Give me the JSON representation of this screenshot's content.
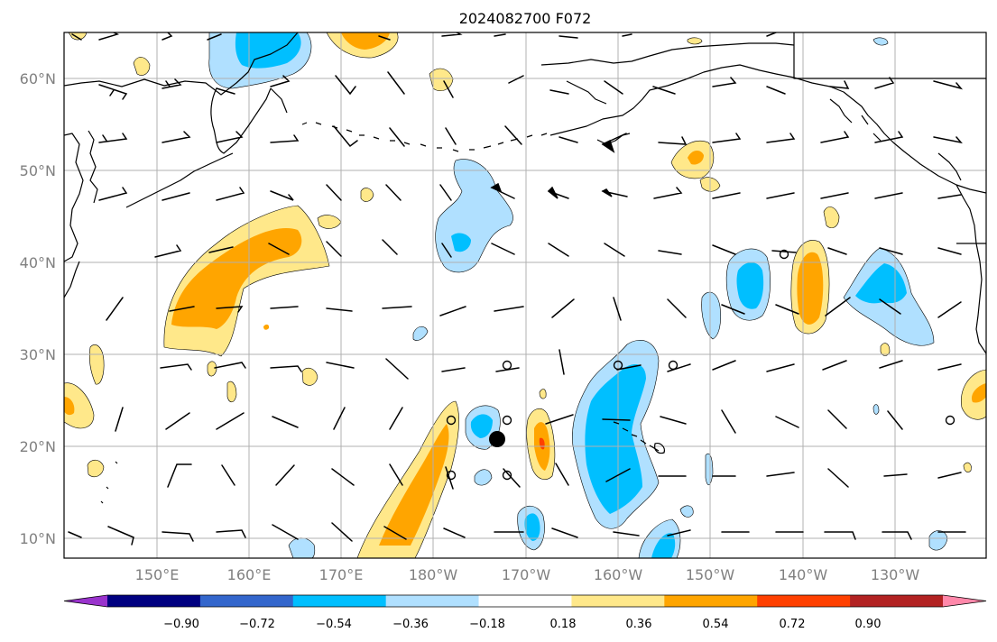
{
  "title": "2024082700 F072",
  "map": {
    "lat_labels": [
      "60°N",
      "50°N",
      "40°N",
      "30°N",
      "20°N",
      "10°N"
    ],
    "lon_labels": [
      "150°E",
      "160°E",
      "170°E",
      "180°W",
      "170°W",
      "160°W",
      "150°W",
      "140°W",
      "130°W"
    ]
  },
  "colorbar": {
    "colors": [
      "#9933cc",
      "#000080",
      "#3366cc",
      "#00bfff",
      "#b0e0ff",
      "#ffffff",
      "#ffe88a",
      "#ffa500",
      "#ff4000",
      "#b22222",
      "#ff88aa"
    ],
    "labels": [
      "−0.90",
      "−0.72",
      "−0.54",
      "−0.36",
      "−0.18",
      "0.18",
      "0.36",
      "0.54",
      "0.72",
      "0.90"
    ]
  },
  "colors": {
    "grid": "#b0b0b0",
    "coast": "#000000",
    "tick_text": "#808080"
  }
}
